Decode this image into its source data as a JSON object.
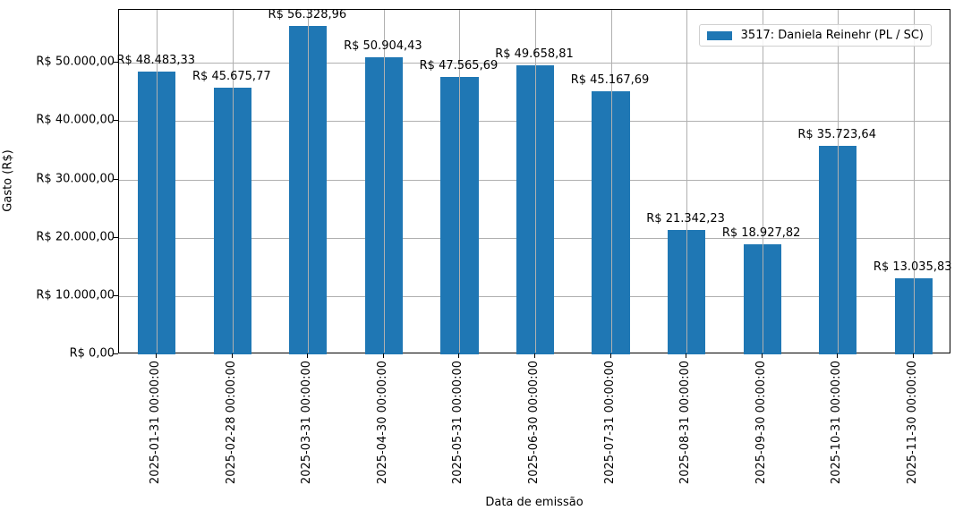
{
  "chart_data": {
    "type": "bar",
    "title": "",
    "xlabel": "Data de emissão",
    "ylabel": "Gasto (R$)",
    "ylim": [
      0,
      59100
    ],
    "grid": true,
    "legend_position": "upper right",
    "categories": [
      "2025-01-31 00:00:00",
      "2025-02-28 00:00:00",
      "2025-03-31 00:00:00",
      "2025-04-30 00:00:00",
      "2025-05-31 00:00:00",
      "2025-06-30 00:00:00",
      "2025-07-31 00:00:00",
      "2025-08-31 00:00:00",
      "2025-09-30 00:00:00",
      "2025-10-31 00:00:00",
      "2025-11-30 00:00:00"
    ],
    "series": [
      {
        "name": "3517: Daniela Reinehr (PL / SC)",
        "color": "#1f77b4",
        "values": [
          48483.33,
          45675.77,
          56328.96,
          50904.43,
          47565.69,
          49658.81,
          45167.69,
          21342.23,
          18927.82,
          35723.64,
          13035.83
        ]
      }
    ],
    "data_labels": [
      "R$ 48.483,33",
      "R$ 45.675,77",
      "R$ 56.328,96",
      "R$ 50.904,43",
      "R$ 47.565,69",
      "R$ 49.658,81",
      "R$ 45.167,69",
      "R$ 21.342,23",
      "R$ 18.927,82",
      "R$ 35.723,64",
      "R$ 13.035,83"
    ],
    "yticks": [
      0,
      10000,
      20000,
      30000,
      40000,
      50000
    ],
    "ytick_labels": [
      "R$ 0,00",
      "R$ 10.000,00",
      "R$ 20.000,00",
      "R$ 30.000,00",
      "R$ 40.000,00",
      "R$ 50.000,00"
    ]
  }
}
